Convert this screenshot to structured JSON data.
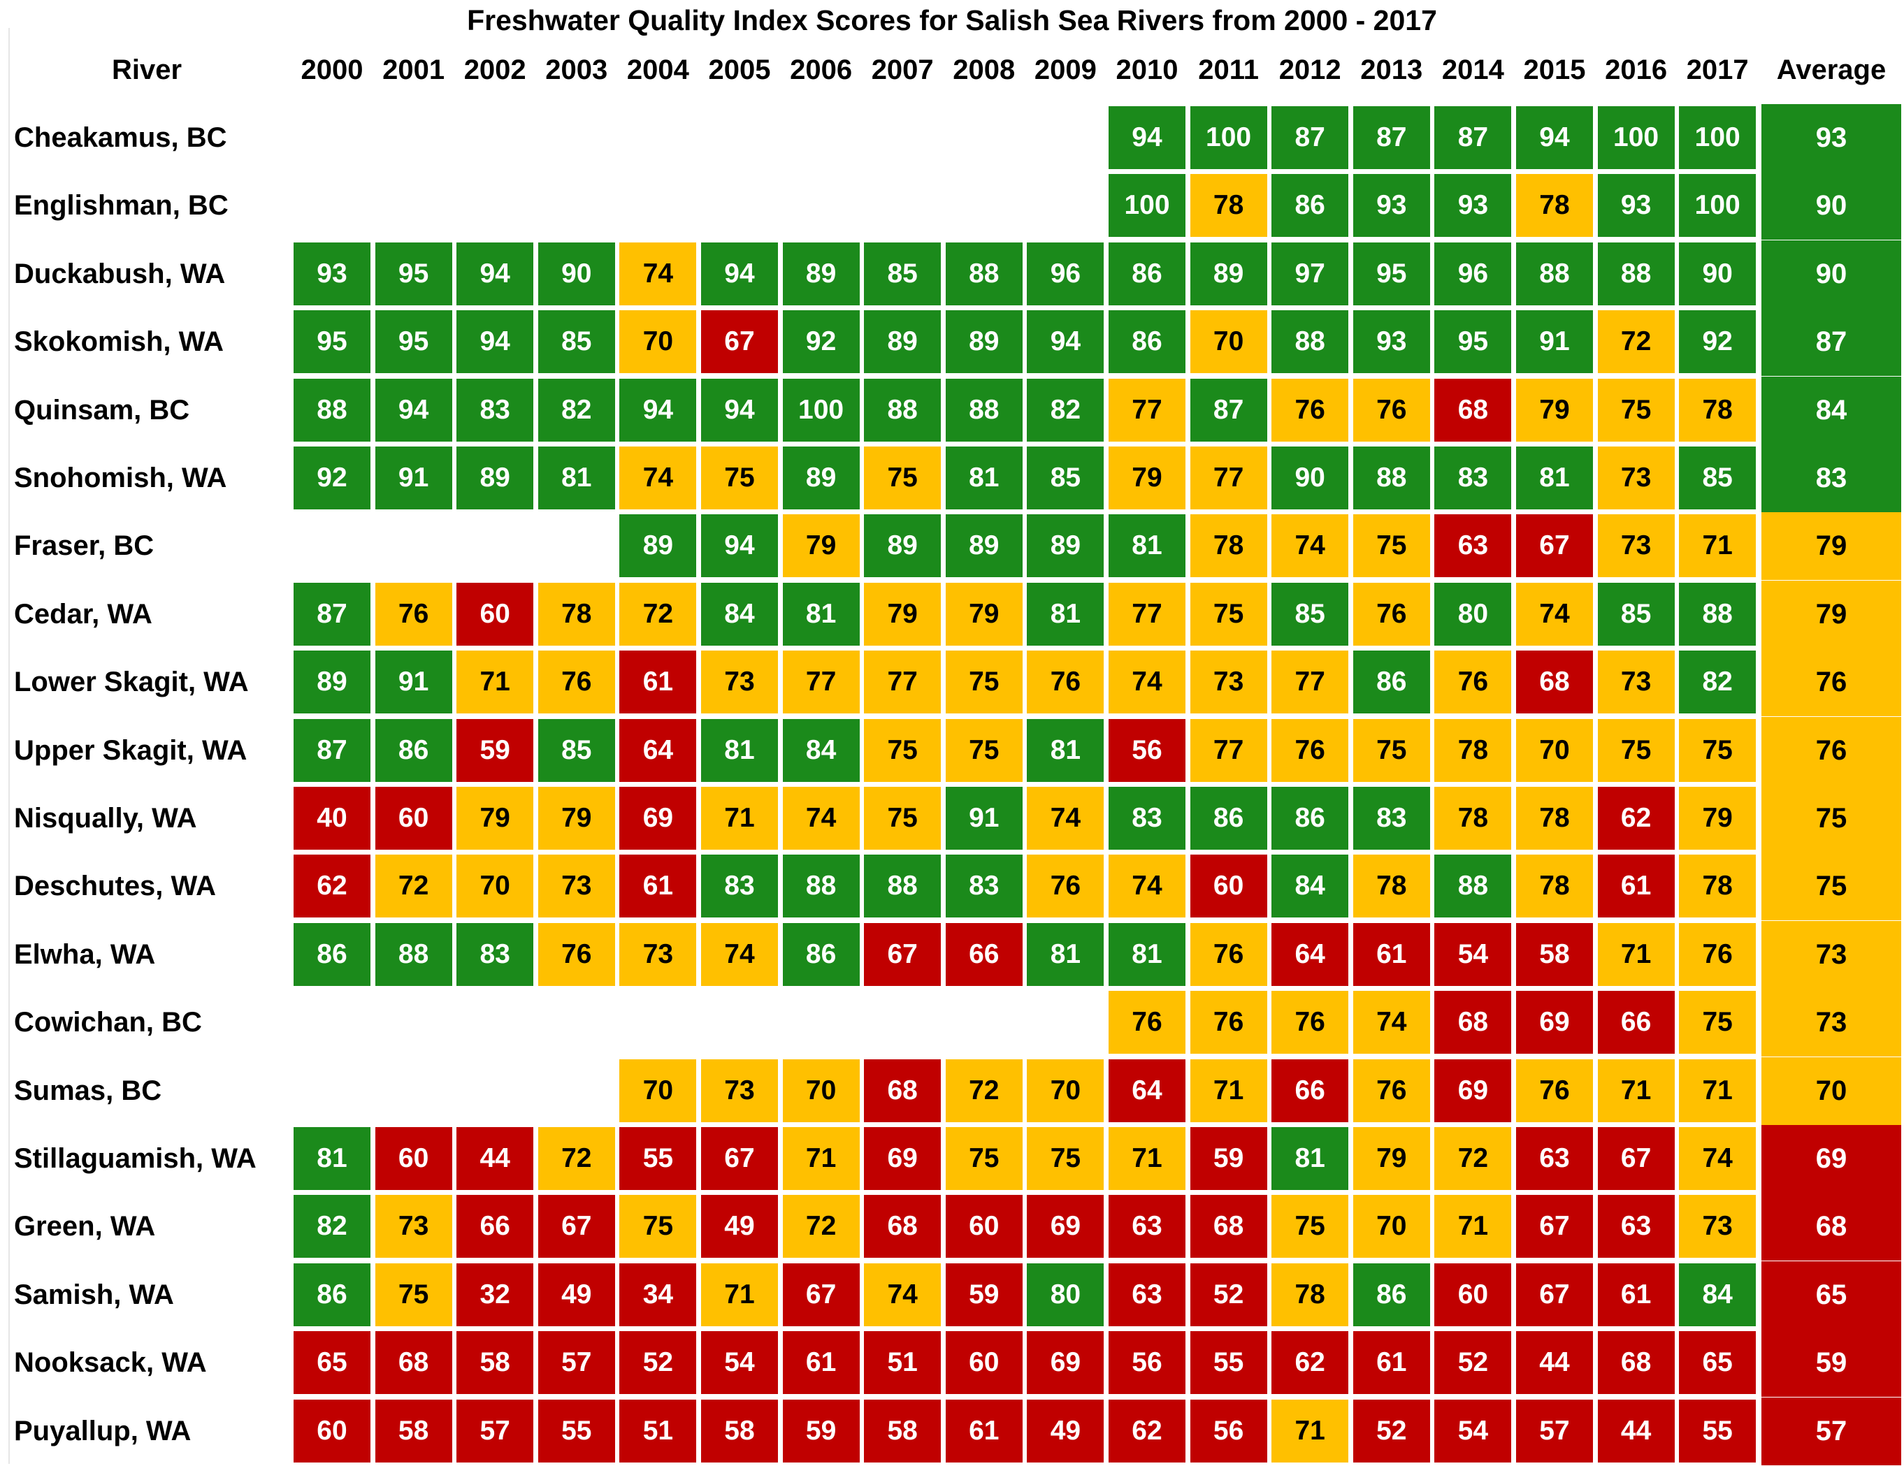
{
  "colors": {
    "green": "#1b8a1b",
    "yellow": "#ffc000",
    "red": "#c00000",
    "white_text": "#ffffff",
    "dark_text": "#000000"
  },
  "chart_data": {
    "type": "table",
    "title": "Freshwater Quality Index Scores for Salish Sea Rivers from 2000 - 2017",
    "row_header": "River",
    "average_header": "Average",
    "years": [
      "2000",
      "2001",
      "2002",
      "2003",
      "2004",
      "2005",
      "2006",
      "2007",
      "2008",
      "2009",
      "2010",
      "2011",
      "2012",
      "2013",
      "2014",
      "2015",
      "2016",
      "2017"
    ],
    "rows": [
      {
        "river": "Cheakamus, BC",
        "values": [
          null,
          null,
          null,
          null,
          null,
          null,
          null,
          null,
          null,
          null,
          94,
          100,
          87,
          87,
          87,
          94,
          100,
          100
        ],
        "average": 93
      },
      {
        "river": "Englishman, BC",
        "values": [
          null,
          null,
          null,
          null,
          null,
          null,
          null,
          null,
          null,
          null,
          100,
          78,
          86,
          93,
          93,
          78,
          93,
          100
        ],
        "average": 90
      },
      {
        "river": "Duckabush, WA",
        "values": [
          93,
          95,
          94,
          90,
          74,
          94,
          89,
          85,
          88,
          96,
          86,
          89,
          97,
          95,
          96,
          88,
          88,
          90
        ],
        "average": 90
      },
      {
        "river": "Skokomish, WA",
        "values": [
          95,
          95,
          94,
          85,
          70,
          67,
          92,
          89,
          89,
          94,
          86,
          70,
          88,
          93,
          95,
          91,
          72,
          92
        ],
        "average": 87
      },
      {
        "river": "Quinsam, BC",
        "values": [
          88,
          94,
          83,
          82,
          94,
          94,
          100,
          88,
          88,
          82,
          77,
          87,
          76,
          76,
          68,
          79,
          75,
          78
        ],
        "average": 84
      },
      {
        "river": "Snohomish, WA",
        "values": [
          92,
          91,
          89,
          81,
          74,
          75,
          89,
          75,
          81,
          85,
          79,
          77,
          90,
          88,
          83,
          81,
          73,
          85
        ],
        "average": 83
      },
      {
        "river": "Fraser, BC",
        "values": [
          null,
          null,
          null,
          null,
          89,
          94,
          79,
          89,
          89,
          89,
          81,
          78,
          74,
          75,
          63,
          67,
          73,
          71
        ],
        "average": 79
      },
      {
        "river": "Cedar, WA",
        "values": [
          87,
          76,
          60,
          78,
          72,
          84,
          81,
          79,
          79,
          81,
          77,
          75,
          85,
          76,
          80,
          74,
          85,
          88
        ],
        "average": 79
      },
      {
        "river": "Lower Skagit, WA",
        "values": [
          89,
          91,
          71,
          76,
          61,
          73,
          77,
          77,
          75,
          76,
          74,
          73,
          77,
          86,
          76,
          68,
          73,
          82
        ],
        "average": 76
      },
      {
        "river": "Upper Skagit, WA",
        "values": [
          87,
          86,
          59,
          85,
          64,
          81,
          84,
          75,
          75,
          81,
          56,
          77,
          76,
          75,
          78,
          70,
          75,
          75
        ],
        "average": 76
      },
      {
        "river": "Nisqually, WA",
        "values": [
          40,
          60,
          79,
          79,
          69,
          71,
          74,
          75,
          91,
          74,
          83,
          86,
          86,
          83,
          78,
          78,
          62,
          79
        ],
        "average": 75
      },
      {
        "river": "Deschutes, WA",
        "values": [
          62,
          72,
          70,
          73,
          61,
          83,
          88,
          88,
          83,
          76,
          74,
          60,
          84,
          78,
          88,
          78,
          61,
          78
        ],
        "average": 75
      },
      {
        "river": "Elwha, WA",
        "values": [
          86,
          88,
          83,
          76,
          73,
          74,
          86,
          67,
          66,
          81,
          81,
          76,
          64,
          61,
          54,
          58,
          71,
          76
        ],
        "average": 73
      },
      {
        "river": "Cowichan, BC",
        "values": [
          null,
          null,
          null,
          null,
          null,
          null,
          null,
          null,
          null,
          null,
          76,
          76,
          76,
          74,
          68,
          69,
          66,
          75
        ],
        "average": 73
      },
      {
        "river": "Sumas, BC",
        "values": [
          null,
          null,
          null,
          null,
          70,
          73,
          70,
          68,
          72,
          70,
          64,
          71,
          66,
          76,
          69,
          76,
          71,
          71
        ],
        "average": 70
      },
      {
        "river": "Stillaguamish, WA",
        "values": [
          81,
          60,
          44,
          72,
          55,
          67,
          71,
          69,
          75,
          75,
          71,
          59,
          81,
          79,
          72,
          63,
          67,
          74
        ],
        "average": 69
      },
      {
        "river": "Green, WA",
        "values": [
          82,
          73,
          66,
          67,
          75,
          49,
          72,
          68,
          60,
          69,
          63,
          68,
          75,
          70,
          71,
          67,
          63,
          73
        ],
        "average": 68
      },
      {
        "river": "Samish, WA",
        "values": [
          86,
          75,
          32,
          49,
          34,
          71,
          67,
          74,
          59,
          80,
          63,
          52,
          78,
          86,
          60,
          67,
          61,
          84
        ],
        "average": 65
      },
      {
        "river": "Nooksack, WA",
        "values": [
          65,
          68,
          58,
          57,
          52,
          54,
          61,
          51,
          60,
          69,
          56,
          55,
          62,
          61,
          52,
          44,
          68,
          65
        ],
        "average": 59
      },
      {
        "river": "Puyallup, WA",
        "values": [
          60,
          58,
          57,
          55,
          51,
          58,
          59,
          58,
          61,
          49,
          62,
          56,
          71,
          52,
          54,
          57,
          44,
          55
        ],
        "average": 57
      }
    ]
  }
}
